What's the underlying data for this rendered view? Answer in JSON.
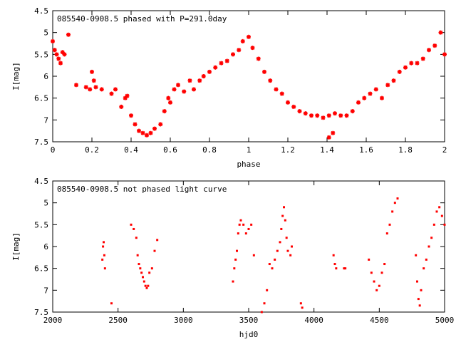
{
  "chart_data": [
    {
      "type": "scatter",
      "title": "085540-0908.5 phased with P=291.0day",
      "xlabel": "phase",
      "ylabel": "I[mag]",
      "xlim": [
        0,
        2
      ],
      "ylim": [
        7.5,
        4.5
      ],
      "y_inverted": true,
      "x_ticks": [
        0,
        0.2,
        0.4,
        0.6,
        0.8,
        1,
        1.2,
        1.4,
        1.6,
        1.8,
        2
      ],
      "x_tick_labels": [
        "0",
        "0.2",
        "0.4",
        "0.6",
        "0.8",
        "1",
        "1.2",
        "1.4",
        "1.6",
        "1.8",
        "2"
      ],
      "y_ticks": [
        4.5,
        5,
        5.5,
        6,
        6.5,
        7,
        7.5
      ],
      "y_tick_labels": [
        "4.5",
        "5",
        "5.5",
        "6",
        "6.5",
        "7",
        "7.5"
      ],
      "grid": false,
      "marker_color": "#ff0000",
      "series": [
        {
          "x": [
            0.0,
            0.01,
            0.02,
            0.03,
            0.04,
            0.05,
            0.06,
            0.08,
            0.12,
            0.17,
            0.19,
            0.2,
            0.21,
            0.22,
            0.25,
            0.3,
            0.32,
            0.35,
            0.37,
            0.38,
            0.4,
            0.42,
            0.44,
            0.46,
            0.48,
            0.5,
            0.52,
            0.55,
            0.57,
            0.59,
            0.6,
            0.62,
            0.64,
            0.67,
            0.7,
            0.72,
            0.75,
            0.77,
            0.8,
            0.83,
            0.86,
            0.89,
            0.92,
            0.95,
            0.97,
            1.0,
            1.02,
            1.05,
            1.08,
            1.11,
            1.14,
            1.17,
            1.2,
            1.23,
            1.26,
            1.29,
            1.32,
            1.35,
            1.38,
            1.41,
            1.44,
            1.47,
            1.5,
            1.53,
            1.56,
            1.59,
            1.62,
            1.65,
            1.68,
            1.71,
            1.74,
            1.77,
            1.8,
            1.83,
            1.86,
            1.89,
            1.92,
            1.95,
            1.98,
            2.0,
            1.43,
            1.41
          ],
          "y": [
            5.2,
            5.4,
            5.5,
            5.6,
            5.7,
            5.45,
            5.5,
            5.05,
            6.2,
            6.25,
            6.3,
            5.9,
            6.1,
            6.25,
            6.3,
            6.4,
            6.3,
            6.7,
            6.5,
            6.45,
            6.9,
            7.1,
            7.25,
            7.3,
            7.35,
            7.3,
            7.2,
            7.1,
            6.8,
            6.5,
            6.6,
            6.3,
            6.2,
            6.35,
            6.1,
            6.3,
            6.1,
            6.0,
            5.9,
            5.8,
            5.7,
            5.65,
            5.5,
            5.4,
            5.2,
            5.1,
            5.35,
            5.6,
            5.9,
            6.1,
            6.3,
            6.4,
            6.6,
            6.7,
            6.8,
            6.85,
            6.9,
            6.9,
            6.95,
            6.9,
            6.85,
            6.9,
            6.9,
            6.8,
            6.6,
            6.5,
            6.4,
            6.3,
            6.5,
            6.2,
            6.1,
            5.9,
            5.8,
            5.7,
            5.7,
            5.6,
            5.4,
            5.3,
            5.0,
            5.5,
            7.3,
            7.4
          ]
        }
      ]
    },
    {
      "type": "scatter",
      "title": "085540-0908.5 not phased light curve",
      "xlabel": "hjd0",
      "ylabel": "I[mag]",
      "xlim": [
        2000,
        5000
      ],
      "ylim": [
        7.5,
        4.5
      ],
      "y_inverted": true,
      "x_ticks": [
        2000,
        2500,
        3000,
        3500,
        4000,
        4500,
        5000
      ],
      "x_tick_labels": [
        "2000",
        "2500",
        "3000",
        "3500",
        "4000",
        "4500",
        "5000"
      ],
      "y_ticks": [
        4.5,
        5,
        5.5,
        6,
        6.5,
        7,
        7.5
      ],
      "y_tick_labels": [
        "4.5",
        "5",
        "5.5",
        "6",
        "6.5",
        "7",
        "7.5"
      ],
      "grid": false,
      "marker_color": "#ff0000",
      "series": [
        {
          "x": [
            2380,
            2385,
            2390,
            2395,
            2400,
            2450,
            2600,
            2620,
            2640,
            2650,
            2660,
            2670,
            2680,
            2690,
            2700,
            2710,
            2720,
            2730,
            2740,
            2760,
            2780,
            2800,
            3380,
            3390,
            3400,
            3410,
            3420,
            3430,
            3440,
            3460,
            3480,
            3500,
            3520,
            3540,
            3600,
            3620,
            3640,
            3660,
            3680,
            3700,
            3720,
            3740,
            3750,
            3760,
            3770,
            3780,
            3790,
            3800,
            3820,
            3830,
            3900,
            3910,
            4150,
            4160,
            4170,
            4230,
            4240,
            4420,
            4440,
            4460,
            4480,
            4500,
            4520,
            4540,
            4560,
            4580,
            4600,
            4620,
            4640,
            4780,
            4790,
            4800,
            4810,
            4820,
            4840,
            4860,
            4880,
            4900,
            4920,
            4940,
            4960,
            4980,
            5000
          ],
          "y": [
            6.3,
            6.0,
            5.9,
            6.2,
            6.5,
            7.3,
            5.5,
            5.6,
            5.8,
            6.2,
            6.4,
            6.5,
            6.6,
            6.7,
            6.8,
            6.9,
            6.95,
            6.9,
            6.6,
            6.5,
            6.1,
            5.85,
            6.8,
            6.5,
            6.3,
            6.1,
            5.7,
            5.5,
            5.4,
            5.5,
            5.7,
            5.6,
            5.5,
            6.2,
            7.5,
            7.3,
            7.0,
            6.4,
            6.5,
            6.3,
            6.1,
            5.9,
            5.6,
            5.3,
            5.1,
            5.4,
            5.8,
            6.1,
            6.2,
            6.0,
            7.3,
            7.4,
            6.2,
            6.4,
            6.5,
            6.5,
            6.5,
            6.3,
            6.6,
            6.8,
            7.0,
            6.9,
            6.6,
            6.4,
            5.7,
            5.5,
            5.2,
            5.0,
            4.9,
            6.2,
            6.8,
            7.2,
            7.35,
            7.0,
            6.5,
            6.3,
            6.0,
            5.8,
            5.5,
            5.2,
            5.1,
            5.3,
            5.5
          ]
        }
      ]
    }
  ]
}
